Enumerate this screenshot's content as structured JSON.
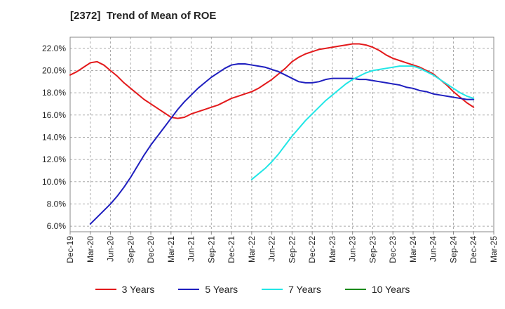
{
  "chart_data": {
    "type": "line",
    "title": "[2372]  Trend of Mean of ROE",
    "xlabel": "",
    "ylabel": "",
    "ylim": [
      5.5,
      23.0
    ],
    "x_tick_labels": [
      "Dec-19",
      "Mar-20",
      "Jun-20",
      "Sep-20",
      "Dec-20",
      "Mar-21",
      "Jun-21",
      "Sep-21",
      "Dec-21",
      "Mar-22",
      "Jun-22",
      "Sep-22",
      "Dec-22",
      "Mar-23",
      "Jun-23",
      "Sep-23",
      "Dec-23",
      "Mar-24",
      "Jun-24",
      "Sep-24",
      "Dec-24",
      "Mar-25"
    ],
    "y_ticks": [
      6,
      8,
      10,
      12,
      14,
      16,
      18,
      20,
      22
    ],
    "y_tick_labels": [
      "6.0%",
      "8.0%",
      "10.0%",
      "12.0%",
      "14.0%",
      "16.0%",
      "18.0%",
      "20.0%",
      "22.0%"
    ],
    "grid": true,
    "legend_position": "bottom",
    "series": [
      {
        "name": "3 Years",
        "color": "#e31a1c",
        "x": [
          "Dec-19",
          "Jan-20",
          "Feb-20",
          "Mar-20",
          "Apr-20",
          "May-20",
          "Jun-20",
          "Jul-20",
          "Aug-20",
          "Sep-20",
          "Oct-20",
          "Nov-20",
          "Dec-20",
          "Jan-21",
          "Feb-21",
          "Mar-21",
          "Apr-21",
          "May-21",
          "Jun-21",
          "Jul-21",
          "Aug-21",
          "Sep-21",
          "Oct-21",
          "Nov-21",
          "Dec-21",
          "Jan-22",
          "Feb-22",
          "Mar-22",
          "Apr-22",
          "May-22",
          "Jun-22",
          "Jul-22",
          "Aug-22",
          "Sep-22",
          "Oct-22",
          "Nov-22",
          "Dec-22",
          "Jan-23",
          "Feb-23",
          "Mar-23",
          "Apr-23",
          "May-23",
          "Jun-23",
          "Jul-23",
          "Aug-23",
          "Sep-23",
          "Oct-23",
          "Nov-23",
          "Dec-23",
          "Jan-24",
          "Feb-24",
          "Mar-24",
          "Apr-24",
          "May-24",
          "Jun-24",
          "Jul-24",
          "Aug-24",
          "Sep-24",
          "Oct-24",
          "Nov-24",
          "Dec-24"
        ],
        "values": [
          19.6,
          19.9,
          20.3,
          20.7,
          20.8,
          20.5,
          20.0,
          19.5,
          18.9,
          18.4,
          17.9,
          17.4,
          17.0,
          16.6,
          16.2,
          15.8,
          15.7,
          15.8,
          16.1,
          16.3,
          16.5,
          16.7,
          16.9,
          17.2,
          17.5,
          17.7,
          17.9,
          18.1,
          18.4,
          18.8,
          19.2,
          19.7,
          20.2,
          20.8,
          21.2,
          21.5,
          21.7,
          21.9,
          22.0,
          22.1,
          22.2,
          22.3,
          22.4,
          22.4,
          22.3,
          22.1,
          21.8,
          21.4,
          21.1,
          20.9,
          20.7,
          20.5,
          20.3,
          20.0,
          19.7,
          19.2,
          18.7,
          18.1,
          17.6,
          17.1,
          16.7
        ]
      },
      {
        "name": "5 Years",
        "color": "#1f1fbf",
        "x": [
          "Mar-20",
          "Apr-20",
          "May-20",
          "Jun-20",
          "Jul-20",
          "Aug-20",
          "Sep-20",
          "Oct-20",
          "Nov-20",
          "Dec-20",
          "Jan-21",
          "Feb-21",
          "Mar-21",
          "Apr-21",
          "May-21",
          "Jun-21",
          "Jul-21",
          "Aug-21",
          "Sep-21",
          "Oct-21",
          "Nov-21",
          "Dec-21",
          "Jan-22",
          "Feb-22",
          "Mar-22",
          "Apr-22",
          "May-22",
          "Jun-22",
          "Jul-22",
          "Aug-22",
          "Sep-22",
          "Oct-22",
          "Nov-22",
          "Dec-22",
          "Jan-23",
          "Feb-23",
          "Mar-23",
          "Apr-23",
          "May-23",
          "Jun-23",
          "Jul-23",
          "Aug-23",
          "Sep-23",
          "Oct-23",
          "Nov-23",
          "Dec-23",
          "Jan-24",
          "Feb-24",
          "Mar-24",
          "Apr-24",
          "May-24",
          "Jun-24",
          "Jul-24",
          "Aug-24",
          "Sep-24",
          "Oct-24",
          "Nov-24",
          "Dec-24"
        ],
        "values": [
          6.2,
          6.8,
          7.4,
          8.0,
          8.7,
          9.5,
          10.4,
          11.4,
          12.4,
          13.3,
          14.1,
          14.9,
          15.7,
          16.5,
          17.2,
          17.8,
          18.4,
          18.9,
          19.4,
          19.8,
          20.2,
          20.5,
          20.6,
          20.6,
          20.5,
          20.4,
          20.3,
          20.1,
          19.9,
          19.6,
          19.3,
          19.0,
          18.9,
          18.9,
          19.0,
          19.2,
          19.3,
          19.3,
          19.3,
          19.3,
          19.2,
          19.2,
          19.1,
          19.0,
          18.9,
          18.8,
          18.7,
          18.5,
          18.4,
          18.2,
          18.1,
          17.9,
          17.8,
          17.7,
          17.6,
          17.5,
          17.4,
          17.4
        ]
      },
      {
        "name": "7 Years",
        "color": "#22e6e6",
        "x": [
          "Mar-22",
          "Apr-22",
          "May-22",
          "Jun-22",
          "Jul-22",
          "Aug-22",
          "Sep-22",
          "Oct-22",
          "Nov-22",
          "Dec-22",
          "Jan-23",
          "Feb-23",
          "Mar-23",
          "Apr-23",
          "May-23",
          "Jun-23",
          "Jul-23",
          "Aug-23",
          "Sep-23",
          "Oct-23",
          "Nov-23",
          "Dec-23",
          "Jan-24",
          "Feb-24",
          "Mar-24",
          "Apr-24",
          "May-24",
          "Jun-24",
          "Jul-24",
          "Aug-24",
          "Sep-24",
          "Oct-24",
          "Nov-24",
          "Dec-24"
        ],
        "values": [
          10.2,
          10.7,
          11.2,
          11.8,
          12.5,
          13.3,
          14.1,
          14.8,
          15.5,
          16.1,
          16.7,
          17.3,
          17.8,
          18.3,
          18.8,
          19.2,
          19.5,
          19.8,
          20.0,
          20.1,
          20.2,
          20.3,
          20.4,
          20.4,
          20.4,
          20.2,
          19.9,
          19.6,
          19.2,
          18.8,
          18.4,
          18.0,
          17.7,
          17.5
        ]
      },
      {
        "name": "10 Years",
        "color": "#1a8a1a",
        "x": [],
        "values": []
      }
    ]
  }
}
